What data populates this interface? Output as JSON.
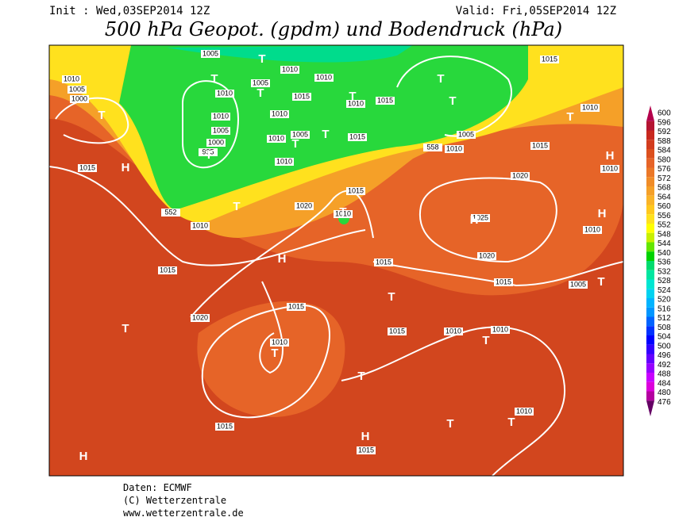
{
  "header": {
    "init": "Init : Wed,03SEP2014 12Z",
    "valid": "Valid: Fri,05SEP2014 12Z",
    "title": "500 hPa Geopot. (gpdm) und Bodendruck (hPa)"
  },
  "legend": {
    "values": [
      600,
      596,
      592,
      588,
      584,
      580,
      576,
      572,
      568,
      564,
      560,
      556,
      552,
      548,
      544,
      540,
      536,
      532,
      528,
      524,
      520,
      516,
      512,
      508,
      504,
      500,
      496,
      492,
      488,
      484,
      480,
      476
    ],
    "colors": [
      "#b4004b",
      "#b41432",
      "#c8281e",
      "#d23c1e",
      "#dc501e",
      "#e66428",
      "#eb7828",
      "#f08c28",
      "#f5a028",
      "#fab428",
      "#ffc81e",
      "#ffe11e",
      "#ffff00",
      "#c8f000",
      "#64e600",
      "#00d200",
      "#00dc6e",
      "#00e6a0",
      "#00e6d2",
      "#00d2f0",
      "#00b4ff",
      "#0096ff",
      "#0064ff",
      "#0032ff",
      "#0000ff",
      "#3200ff",
      "#6400ff",
      "#9600ff",
      "#c800ff",
      "#dc00dc",
      "#b400a0",
      "#640064"
    ]
  },
  "map": {
    "pressure_labels": [
      "1005",
      "1010",
      "1005",
      "1000",
      "1010",
      "1005",
      "1010",
      "1010",
      "1015",
      "1010",
      "1010",
      "1005",
      "1000",
      "995",
      "1005",
      "1010",
      "1010",
      "1010",
      "1015",
      "1015",
      "558",
      "1010",
      "1005",
      "1015",
      "1010",
      "1015",
      "1010",
      "1015",
      "1020",
      "1015",
      "1020",
      "1010",
      "1025",
      "552",
      "1010",
      "1010",
      "1015",
      "1015",
      "1020",
      "1015",
      "1005",
      "1015",
      "1020",
      "1015",
      "1010",
      "1010",
      "1010",
      "1010",
      "1015",
      "1015"
    ],
    "centers": [
      "T",
      "H",
      "T",
      "T",
      "T",
      "T",
      "T",
      "T",
      "T",
      "T",
      "T",
      "H",
      "H",
      "T",
      "T",
      "H",
      "H",
      "T",
      "T",
      "T",
      "T",
      "T",
      "T",
      "T",
      "T",
      "H",
      "H",
      "T"
    ]
  },
  "footer": {
    "source": "Daten: ECMWF",
    "copyright": "(C) Wetterzentrale",
    "url": "www.wetterzentrale.de"
  }
}
